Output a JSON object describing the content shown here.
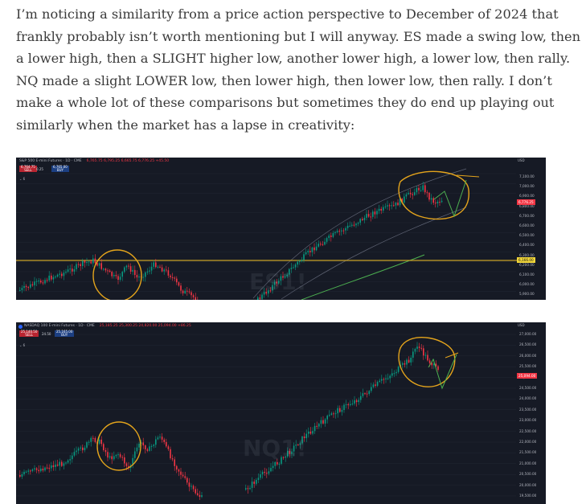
{
  "paragraph": {
    "lines": [
      "I’m noticing a similarity from a price action perspective to December of 2024 that",
      "frankly probably isn’t worth mentioning but I will anyway. ES made a swing low, then",
      "a lower high, then a SLIGHT higher low, another lower high, a lower low, then rally.",
      "NQ made a slight LOWER low, then lower high, then lower low, then rally. I don’t",
      "make a whole lot of these comparisons but sometimes they do end up playing out",
      "similarly when the market has a lapse in creativity:"
    ]
  },
  "charts": [
    {
      "header": "S&P 500 E-mini Futures · 1D · CME",
      "ohlc": "6,765.75 6,795.25 6,665.75 6,776.25 +45.50",
      "sell_price": "6,764.75",
      "sell_label": "SELL",
      "spread": "0.25",
      "buy_price": "6,765.00",
      "buy_label": "BUY",
      "collapse": "⌄ 6",
      "currency": "USD",
      "watermark": "ES1!",
      "last_price": "6,776.25",
      "line_price": "6,166.00",
      "colors": {
        "up": "#089981",
        "down": "#f23645",
        "circle": "#e4a41c",
        "ma": "#4caf50",
        "level": "#c9a227"
      },
      "chart_data": {
        "type": "candlestick",
        "title": "S&P 500 E-mini Futures · 1D · CME",
        "y_ticks": [
          "7,100.00",
          "7,000.00",
          "6,900.00",
          "6,800.00",
          "6,700.00",
          "6,600.00",
          "6,500.00",
          "6,400.00",
          "6,300.00",
          "6,200.00",
          "6,100.00",
          "6,000.00",
          "5,900.00",
          "5,800.00"
        ],
        "ylim": [
          5800,
          7140
        ],
        "horizontal_level": 6166,
        "circled_regions": [
          "December 2024 swing low / lower high / higher low pattern",
          "recent pattern with projected rally"
        ]
      }
    },
    {
      "header": "NASDAQ 100 E-mini Futures · 1D · CME",
      "ohlc": "25,185.25 25,300.25 24,820.00 25,094.00 +86.25",
      "sell_price": "25,140.50",
      "sell_label": "SELL",
      "spread": "24.50",
      "buy_price": "25,165.00",
      "buy_label": "BUY",
      "collapse": "⌄ 6",
      "currency": "USD",
      "watermark": "NQ1!",
      "last_price": "25,094.00",
      "colors": {
        "up": "#089981",
        "down": "#f23645",
        "circle": "#e4a41c"
      },
      "chart_data": {
        "type": "candlestick",
        "title": "NASDAQ 100 E-mini Futures · 1D · CME",
        "y_ticks": [
          "27,000.00",
          "26,500.00",
          "26,000.00",
          "25,500.00",
          "25,000.00",
          "24,500.00",
          "24,000.00",
          "23,500.00",
          "23,000.00",
          "22,500.00",
          "22,000.00",
          "21,500.00",
          "21,000.00",
          "20,500.00",
          "20,000.00",
          "19,500.00"
        ],
        "ylim": [
          19400,
          27200
        ],
        "circled_regions": [
          "December 2024 lower low / lower high / lower low pattern",
          "recent pattern with projected rally"
        ]
      }
    }
  ]
}
